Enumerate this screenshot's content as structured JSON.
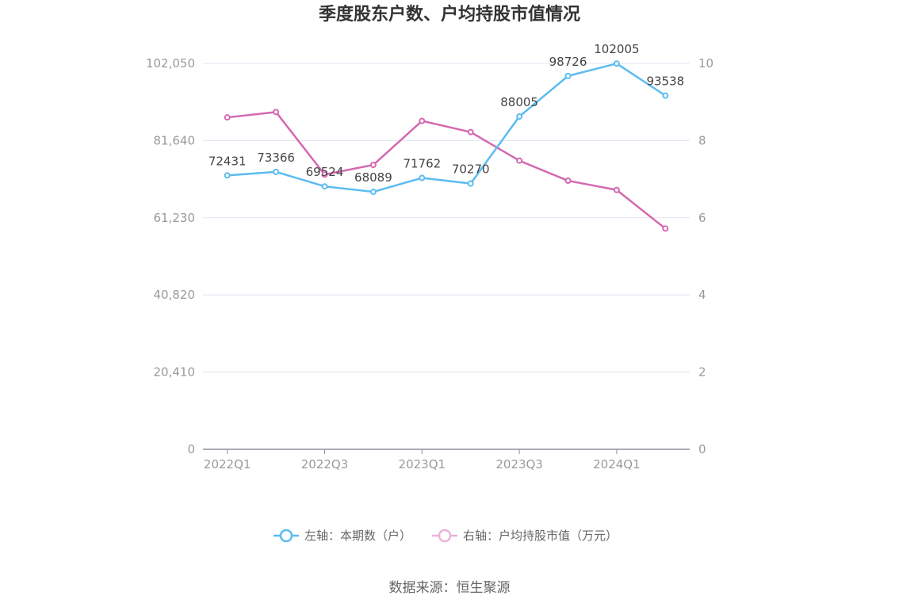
{
  "chart_data": {
    "type": "line",
    "title": "季度股东户数、户均持股市值情况",
    "x": [
      "2022Q1",
      "2022Q2",
      "2022Q3",
      "2022Q4",
      "2023Q1",
      "2023Q2",
      "2023Q3",
      "2023Q4",
      "2024Q1",
      "2024Q2"
    ],
    "x_tick_labels": [
      "2022Q1",
      "2022Q3",
      "2023Q1",
      "2023Q3",
      "2024Q1"
    ],
    "series": [
      {
        "name": "左轴：本期数（户）",
        "axis": "left",
        "color": "#5bbcf0",
        "values": [
          72431,
          73366,
          69524,
          68089,
          71762,
          70270,
          88005,
          98726,
          102005,
          93538
        ],
        "labels": [
          "72431",
          "73366",
          "69524",
          "68089",
          "71762",
          "70270",
          "88005",
          "98726",
          "102005",
          "93538"
        ]
      },
      {
        "name": "右轴：户均持股市值（万元）",
        "axis": "right",
        "color": "#d468b0",
        "values": [
          8.6,
          8.74,
          7.12,
          7.37,
          8.51,
          8.22,
          7.48,
          6.96,
          6.72,
          5.72
        ]
      }
    ],
    "left_axis": {
      "ylim": [
        0,
        102050
      ],
      "ticks": [
        "0",
        "20,410",
        "40,820",
        "61,230",
        "81,640",
        "102,050"
      ]
    },
    "right_axis": {
      "ylim": [
        0,
        10
      ],
      "ticks": [
        "0",
        "2",
        "4",
        "6",
        "8",
        "10"
      ]
    },
    "grid": true,
    "legend_position": "bottom"
  },
  "source": "数据来源：恒生聚源"
}
